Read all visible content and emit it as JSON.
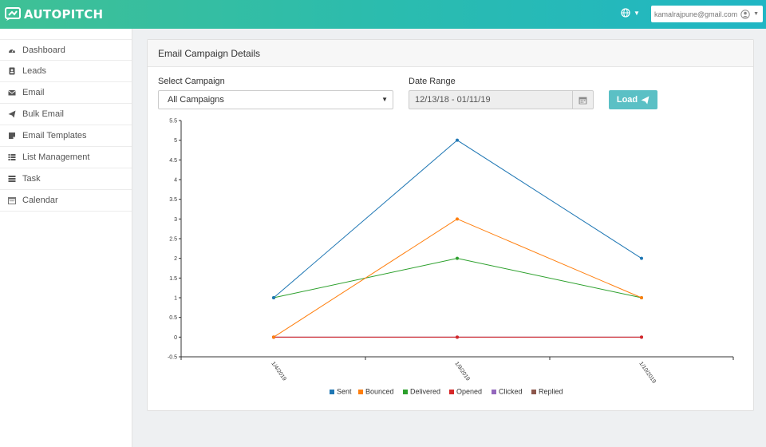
{
  "app": {
    "logo_text": "AUTOPITCH"
  },
  "header": {
    "user_email": "kamalrajpune@gmail.com"
  },
  "colors": {
    "accent": "#2bbcae",
    "load_button": "#5bc0c5"
  },
  "sidebar": {
    "items": [
      {
        "label": "Dashboard",
        "icon": "dashboard-icon"
      },
      {
        "label": "Leads",
        "icon": "address-book-icon"
      },
      {
        "label": "Email",
        "icon": "envelope-icon"
      },
      {
        "label": "Bulk Email",
        "icon": "paper-plane-icon"
      },
      {
        "label": "Email Templates",
        "icon": "template-icon"
      },
      {
        "label": "List Management",
        "icon": "list-icon"
      },
      {
        "label": "Task",
        "icon": "tasks-icon"
      },
      {
        "label": "Calendar",
        "icon": "calendar-icon"
      }
    ]
  },
  "panel": {
    "title": "Email Campaign Details",
    "campaign_label": "Select Campaign",
    "campaign_value": "All Campaigns",
    "date_label": "Date Range",
    "date_value": "12/13/18 - 01/11/19",
    "load_label": "Load"
  },
  "chart_data": {
    "type": "line",
    "categories": [
      "1/4/2019",
      "1/9/2019",
      "1/10/2019"
    ],
    "ylim": [
      -0.5,
      5.5
    ],
    "yticks": [
      "5.5",
      "5",
      "4.5",
      "4",
      "3.5",
      "3",
      "2.5",
      "2",
      "1.5",
      "1",
      "0.5",
      "0",
      "-0.5"
    ],
    "grid": false,
    "legend_position": "bottom",
    "series": [
      {
        "name": "Sent",
        "color": "#1f77b4",
        "values": [
          1,
          5,
          2
        ]
      },
      {
        "name": "Bounced",
        "color": "#ff7f0e",
        "values": [
          0,
          3,
          1
        ]
      },
      {
        "name": "Delivered",
        "color": "#2ca02c",
        "values": [
          1,
          2,
          1
        ]
      },
      {
        "name": "Opened",
        "color": "#d62728",
        "values": [
          0,
          0,
          0
        ]
      },
      {
        "name": "Clicked",
        "color": "#9467bd",
        "values": [
          0,
          0,
          0
        ]
      },
      {
        "name": "Replied",
        "color": "#8c564b",
        "values": [
          0,
          0,
          0
        ]
      }
    ]
  }
}
